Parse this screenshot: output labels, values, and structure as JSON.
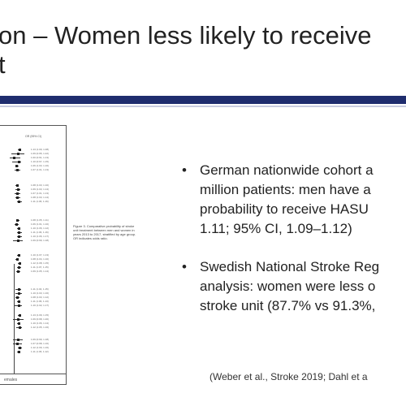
{
  "slide": {
    "title_lines": [
      "on – Women less likely to receive",
      "t"
    ],
    "bullets": [
      {
        "lines": [
          "German nationwide cohort a",
          "million patients: men have a",
          "probability to receive HASU",
          "1.11; 95% CI, 1.09–1.12)"
        ]
      },
      {
        "lines": [
          "Swedish National Stroke Reg",
          "analysis: women were less o",
          "stroke unit (87.7% vs 91.3%,"
        ]
      }
    ],
    "bullet_glyph": "•",
    "reference": "(Weber et al., Stroke 2019; Dahl et a",
    "figure": {
      "header": "OR (95% CI)",
      "caption": "Figure 3. Comparative probability of stroke unit treatment between men and women in years 2013 to 2017, stratified by age group. OR indicates odds ratio.",
      "footer": "emales",
      "rows": [
        "1.13 (1.09, 1.08)",
        "1.09 (0.95, 1.22)",
        "1.00 (0.91, 1.13)",
        "1.10 (0.97, 1.15)",
        "1.06 (1.03, 1.10)",
        "1.07 (1.01, 1.13)",
        "1.08 (1.03, 1.10)",
        "1.09 (1.03, 1.14)",
        "1.07 (1.01, 1.13)",
        "1.08 (1.03, 1.14)",
        "1.11 (1.06, 1.16)",
        "1.08 (1.05, 1.11)",
        "1.06 (1.01, 1.10)",
        "1.10 (1.06, 1.12)",
        "1.11 (1.06, 1.16)",
        "1.10 (1.06, 1.17)",
        "1.09 (0.99, 1.18)",
        "1.10 (1.07, 1.13)",
        "1.08 (1.04, 1.10)",
        "1.12 (1.08, 1.15)",
        "1.11 (1.07, 1.15)",
        "1.09 (1.05, 1.14)",
        "1.11 (1.04, 1.15)",
        "1.10 (1.03, 1.16)",
        "1.08 (1.03, 1.12)",
        "1.11 (1.06, 1.13)",
        "1.10 (1.02, 1.17)",
        "1.13 (1.09, 1.15)",
        "1.09 (0.98, 1.20)",
        "1.10 (1.06, 1.14)",
        "1.12 (1.05, 1.16)",
        "1.09 (0.99, 1.18)",
        "1.07 (0.98, 1.16)",
        "1.12 (1.09, 1.16)",
        "1.11 (1.06, 1.12)"
      ]
    },
    "colors": {
      "title_rule": "#1f2d6e",
      "text": "#222222"
    }
  }
}
